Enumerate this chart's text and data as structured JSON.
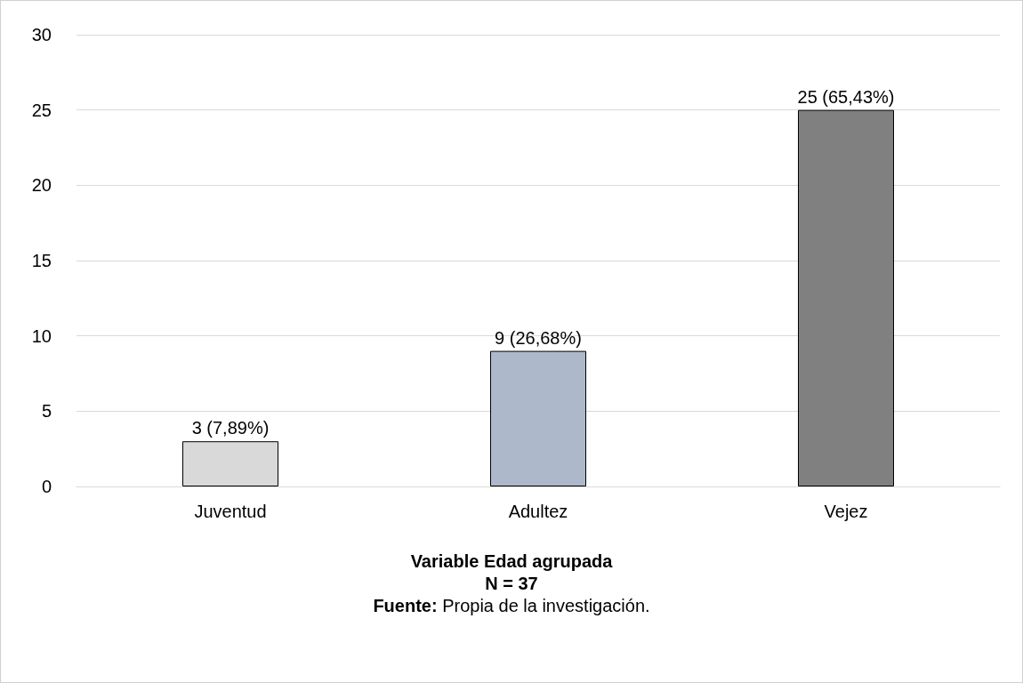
{
  "chart_data": {
    "type": "bar",
    "xlabel": "Variable Edad agrupada",
    "categories": [
      "Juventud",
      "Adultez",
      "Vejez"
    ],
    "values": [
      3,
      9,
      25
    ],
    "colors": [
      "#d9d9d9",
      "#adb9ca",
      "#808080"
    ],
    "value_labels": [
      "3 (7,89%)",
      "9 (26,68%)",
      "25 (65,43%)"
    ],
    "ylim": [
      0,
      30
    ],
    "yticks": [
      0,
      5,
      10,
      15,
      20,
      25,
      30
    ],
    "grid": "y",
    "annotations": [
      "N = 37",
      "Fuente: Propia de la investigación."
    ]
  }
}
